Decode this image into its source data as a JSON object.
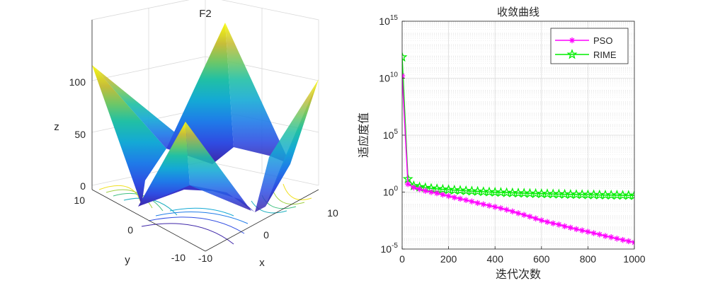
{
  "chart_data": [
    {
      "type": "surface3d",
      "title": "F2",
      "xlabel": "x",
      "ylabel": "y",
      "zlabel": "z",
      "x_ticks": [
        "-10",
        "0",
        "10"
      ],
      "y_ticks": [
        "-10",
        "0",
        "10"
      ],
      "z_ticks": [
        "0",
        "50",
        "100"
      ],
      "xlim": [
        -10,
        10
      ],
      "ylim": [
        -10,
        10
      ],
      "zlim": [
        0,
        120
      ],
      "colormap": "parula",
      "contour_on_floor": true,
      "grid": true
    },
    {
      "type": "line",
      "title": "收敛曲线",
      "xlabel": "迭代次数",
      "ylabel": "适应度值",
      "yscale": "log",
      "xlim": [
        0,
        1000
      ],
      "ylim": [
        1e-05,
        1000000000000000.0
      ],
      "x_ticks": [
        "0",
        "200",
        "400",
        "600",
        "800",
        "1000"
      ],
      "y_ticks": [
        {
          "base": "10",
          "exp": "-5"
        },
        {
          "base": "10",
          "exp": "0"
        },
        {
          "base": "10",
          "exp": "5"
        },
        {
          "base": "10",
          "exp": "10"
        },
        {
          "base": "10",
          "exp": "15"
        }
      ],
      "grid": true,
      "legend_position": "top-right",
      "x": [
        0,
        25,
        50,
        75,
        100,
        125,
        150,
        175,
        200,
        225,
        250,
        275,
        300,
        325,
        350,
        375,
        400,
        425,
        450,
        475,
        500,
        525,
        550,
        575,
        600,
        625,
        650,
        675,
        700,
        725,
        750,
        775,
        800,
        825,
        850,
        875,
        900,
        925,
        950,
        975,
        1000
      ],
      "series": [
        {
          "name": "PSO",
          "color": "#ff00ff",
          "marker": "asterisk",
          "y": [
            16000000000.0,
            5,
            2.5,
            1.8,
            1.3,
            1.0,
            0.8,
            0.6,
            0.45,
            0.34,
            0.26,
            0.2,
            0.15,
            0.11,
            0.085,
            0.065,
            0.05,
            0.038,
            0.028,
            0.02,
            0.014,
            0.01,
            0.007,
            0.0048,
            0.0033,
            0.0024,
            0.0018,
            0.0014,
            0.001,
            0.00075,
            0.00056,
            0.00043,
            0.00033,
            0.00025,
            0.00019,
            0.00014,
            0.00011,
            8.2e-05,
            6.3e-05,
            4.9e-05,
            3.8e-05
          ]
        },
        {
          "name": "RIME",
          "color": "#00ee00",
          "marker": "pentagram",
          "y": [
            700000000000.0,
            14,
            3.5,
            2.8,
            2.4,
            2.1,
            1.9,
            1.75,
            1.6,
            1.5,
            1.4,
            1.3,
            1.22,
            1.15,
            1.08,
            1.02,
            0.97,
            0.93,
            0.89,
            0.85,
            0.82,
            0.79,
            0.76,
            0.74,
            0.72,
            0.7,
            0.68,
            0.66,
            0.64,
            0.62,
            0.61,
            0.6,
            0.58,
            0.57,
            0.56,
            0.55,
            0.54,
            0.53,
            0.52,
            0.51,
            0.5
          ]
        }
      ]
    }
  ]
}
